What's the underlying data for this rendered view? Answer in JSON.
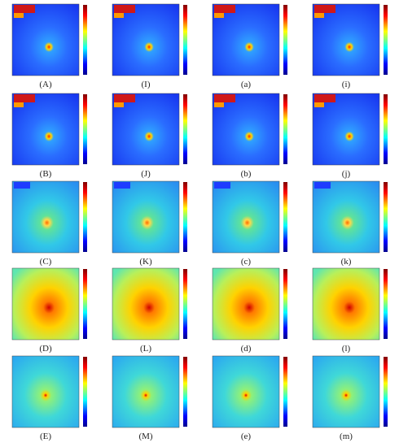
{
  "figure": {
    "rows": [
      [
        "(A)",
        "(I)",
        "(a)",
        "(i)"
      ],
      [
        "(B)",
        "(J)",
        "(b)",
        "(j)"
      ],
      [
        "(C)",
        "(K)",
        "(c)",
        "(k)"
      ],
      [
        "(D)",
        "(L)",
        "(d)",
        "(l)"
      ],
      [
        "(E)",
        "(M)",
        "(e)",
        "(m)"
      ]
    ]
  }
}
